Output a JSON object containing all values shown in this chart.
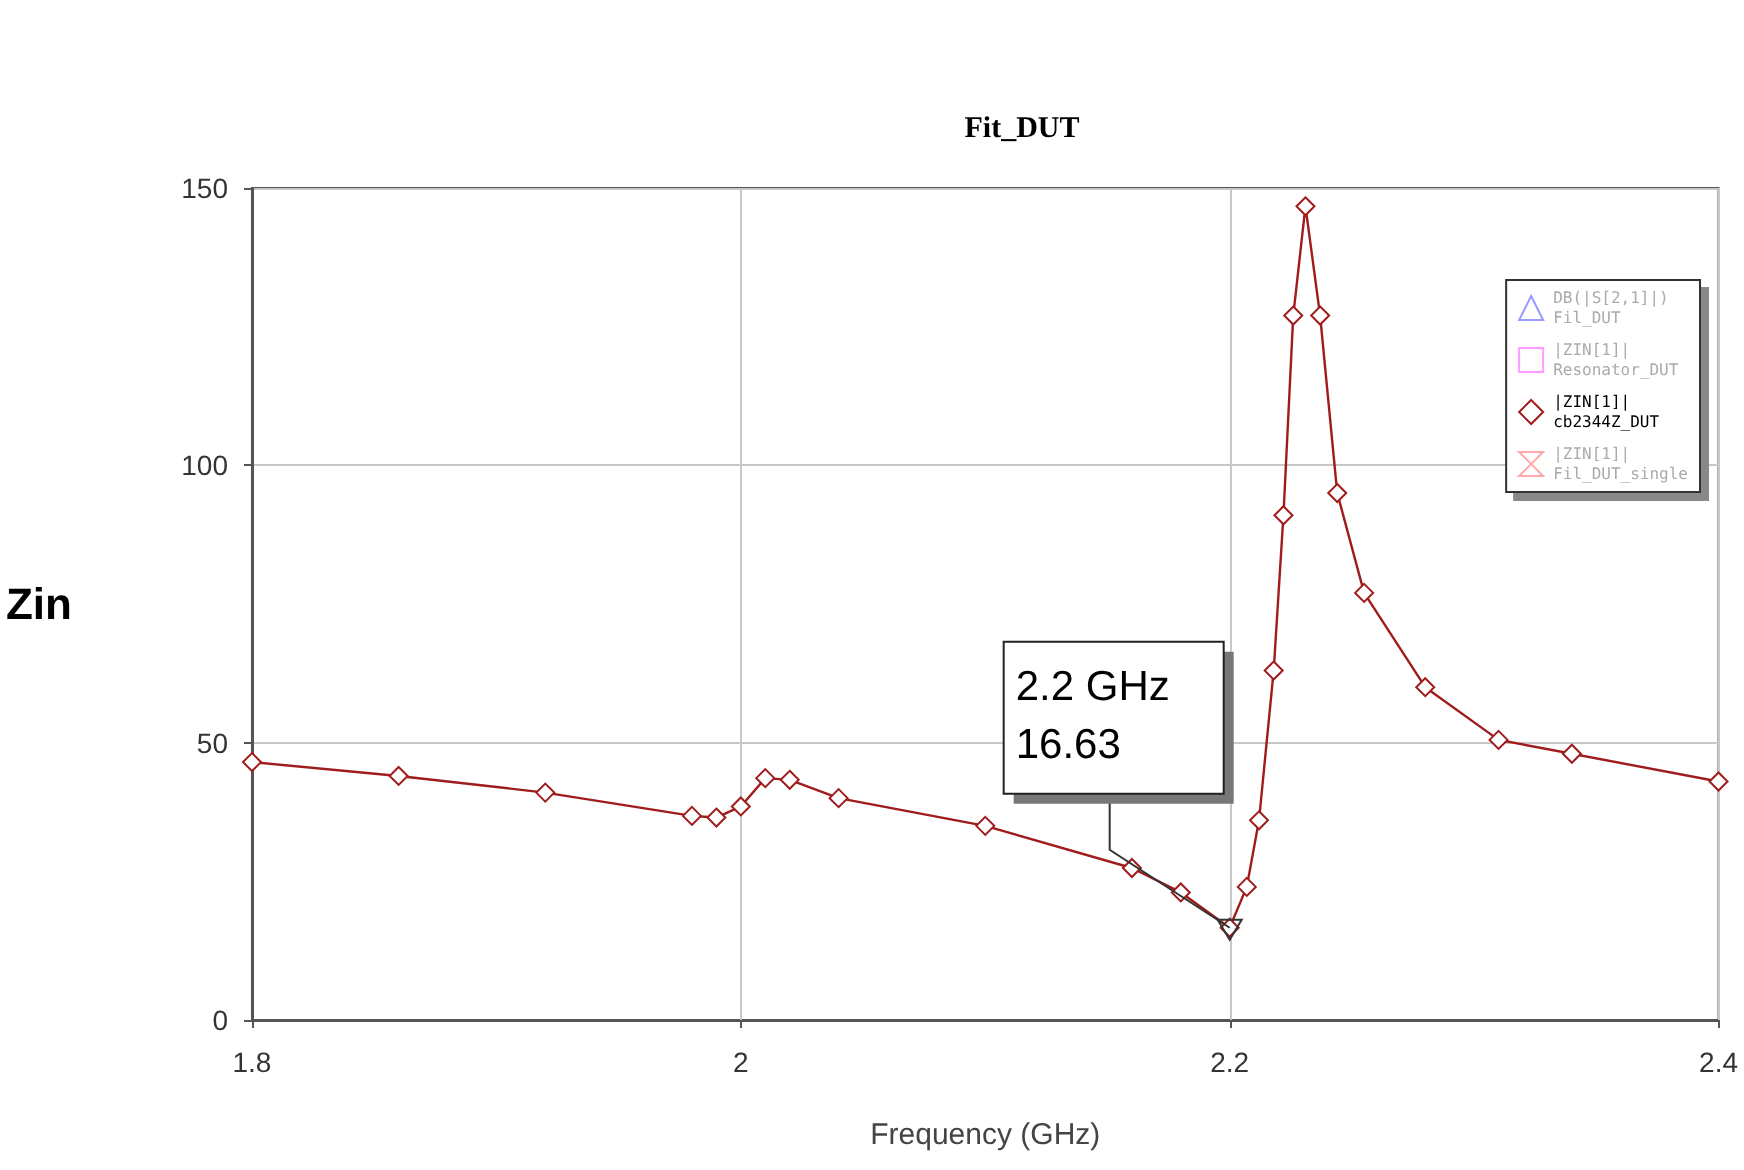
{
  "chart_data": {
    "type": "line",
    "title": "Fit_DUT",
    "xlabel": "Frequency (GHz)",
    "ylabel": "Zin",
    "x": [
      1.8,
      1.86,
      1.92,
      1.98,
      1.99,
      2.0,
      2.01,
      2.02,
      2.04,
      2.1,
      2.16,
      2.18,
      2.2,
      2.207,
      2.212,
      2.218,
      2.222,
      2.226,
      2.231,
      2.237,
      2.244,
      2.255,
      2.28,
      2.31,
      2.34,
      2.4
    ],
    "series": [
      {
        "name": "DB(|S[2,1]|)\nFil_DUT",
        "color": "#9999ff",
        "values": [
          null,
          null,
          null,
          null,
          null,
          null,
          null,
          null,
          null,
          null,
          null,
          null,
          null,
          null,
          null,
          null,
          null,
          null,
          null,
          null,
          null,
          null,
          null,
          null,
          null,
          null
        ]
      },
      {
        "name": "|ZIN[1]|\nResonator_DUT",
        "color": "#ff99ff",
        "values": [
          null,
          null,
          null,
          null,
          null,
          null,
          null,
          null,
          null,
          null,
          null,
          null,
          null,
          null,
          null,
          null,
          null,
          null,
          null,
          null,
          null,
          null,
          null,
          null,
          null,
          null
        ]
      },
      {
        "name": "|ZIN[1]|\ncb2344Z_DUT",
        "color": "#a01c1c",
        "values": [
          46.5,
          44,
          41,
          36.8,
          36.5,
          38.5,
          43.6,
          43.3,
          40,
          35,
          27.4,
          23,
          16.63,
          24,
          36,
          63,
          91,
          127,
          146.7,
          127,
          95,
          77,
          60,
          50.5,
          48,
          43
        ]
      },
      {
        "name": "|ZIN[1]|\nFil_DUT_single",
        "color": "#ffaaaa",
        "values": [
          null,
          null,
          null,
          null,
          null,
          null,
          null,
          null,
          null,
          null,
          null,
          null,
          null,
          null,
          null,
          null,
          null,
          null,
          null,
          null,
          null,
          null,
          null,
          null,
          null,
          null
        ]
      }
    ],
    "xlim": [
      1.8,
      2.4
    ],
    "xticks": [
      1.8,
      2,
      2.2,
      2.4
    ],
    "ylim": [
      0,
      150
    ],
    "yticks": [
      0,
      50,
      100,
      150
    ],
    "grid": true,
    "legend": "top right",
    "marker": "diamond",
    "line_style": "solid",
    "annotations": [
      {
        "text": "2.2 GHz\n16.63",
        "x": 2.2,
        "y": 16.63
      }
    ]
  }
}
